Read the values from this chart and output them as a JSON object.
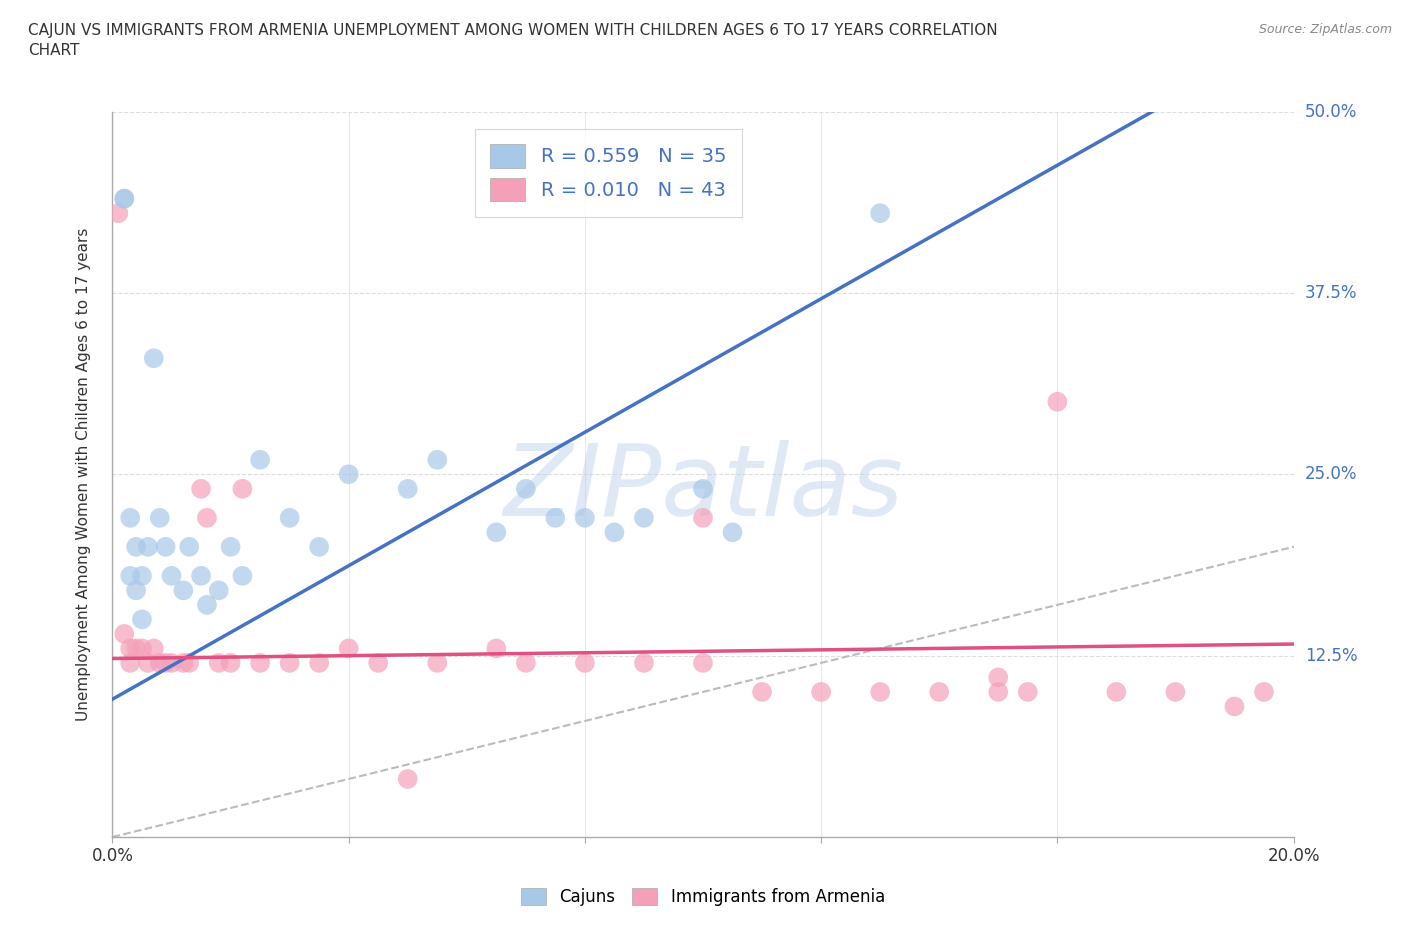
{
  "title": "CAJUN VS IMMIGRANTS FROM ARMENIA UNEMPLOYMENT AMONG WOMEN WITH CHILDREN AGES 6 TO 17 YEARS CORRELATION\nCHART",
  "source": "Source: ZipAtlas.com",
  "ylabel": "Unemployment Among Women with Children Ages 6 to 17 years",
  "xlim": [
    0.0,
    0.2
  ],
  "ylim": [
    0.0,
    0.5
  ],
  "xticks": [
    0.0,
    0.04,
    0.08,
    0.12,
    0.16,
    0.2
  ],
  "xtick_labels": [
    "0.0%",
    "",
    "",
    "",
    "",
    "20.0%"
  ],
  "yticks": [
    0.0,
    0.125,
    0.25,
    0.375,
    0.5
  ],
  "ytick_labels": [
    "",
    "12.5%",
    "25.0%",
    "37.5%",
    "50.0%"
  ],
  "cajun_color": "#a8c8e8",
  "armenia_color": "#f4a0b8",
  "cajun_line_color": "#4472c4",
  "armenia_line_color": "#e05080",
  "diagonal_color": "#bbbbbb",
  "grid_color": "#dddddd",
  "R_cajun": 0.559,
  "N_cajun": 35,
  "R_armenia": 0.01,
  "N_armenia": 43,
  "cajun_slope": 2.3,
  "cajun_intercept": 0.095,
  "armenia_slope": 0.05,
  "armenia_intercept": 0.123,
  "cajun_x": [
    0.002,
    0.002,
    0.003,
    0.003,
    0.004,
    0.004,
    0.005,
    0.005,
    0.006,
    0.007,
    0.008,
    0.009,
    0.01,
    0.012,
    0.013,
    0.015,
    0.016,
    0.018,
    0.02,
    0.022,
    0.025,
    0.03,
    0.035,
    0.04,
    0.05,
    0.055,
    0.065,
    0.07,
    0.075,
    0.08,
    0.085,
    0.09,
    0.1,
    0.105,
    0.13
  ],
  "cajun_y": [
    0.44,
    0.44,
    0.22,
    0.18,
    0.2,
    0.17,
    0.18,
    0.15,
    0.2,
    0.33,
    0.22,
    0.2,
    0.18,
    0.17,
    0.2,
    0.18,
    0.16,
    0.17,
    0.2,
    0.18,
    0.26,
    0.22,
    0.2,
    0.25,
    0.24,
    0.26,
    0.21,
    0.24,
    0.22,
    0.22,
    0.21,
    0.22,
    0.24,
    0.21,
    0.43
  ],
  "armenia_x": [
    0.001,
    0.002,
    0.003,
    0.003,
    0.004,
    0.005,
    0.006,
    0.007,
    0.008,
    0.009,
    0.01,
    0.012,
    0.013,
    0.015,
    0.016,
    0.018,
    0.02,
    0.022,
    0.025,
    0.03,
    0.035,
    0.04,
    0.045,
    0.05,
    0.055,
    0.065,
    0.07,
    0.08,
    0.09,
    0.1,
    0.11,
    0.12,
    0.13,
    0.14,
    0.15,
    0.155,
    0.16,
    0.17,
    0.18,
    0.19,
    0.195,
    0.15,
    0.1
  ],
  "armenia_y": [
    0.43,
    0.14,
    0.13,
    0.12,
    0.13,
    0.13,
    0.12,
    0.13,
    0.12,
    0.12,
    0.12,
    0.12,
    0.12,
    0.24,
    0.22,
    0.12,
    0.12,
    0.24,
    0.12,
    0.12,
    0.12,
    0.13,
    0.12,
    0.04,
    0.12,
    0.13,
    0.12,
    0.12,
    0.12,
    0.12,
    0.1,
    0.1,
    0.1,
    0.1,
    0.1,
    0.1,
    0.3,
    0.1,
    0.1,
    0.09,
    0.1,
    0.11,
    0.22
  ],
  "watermark": "ZIPatlas",
  "background_color": "#ffffff"
}
